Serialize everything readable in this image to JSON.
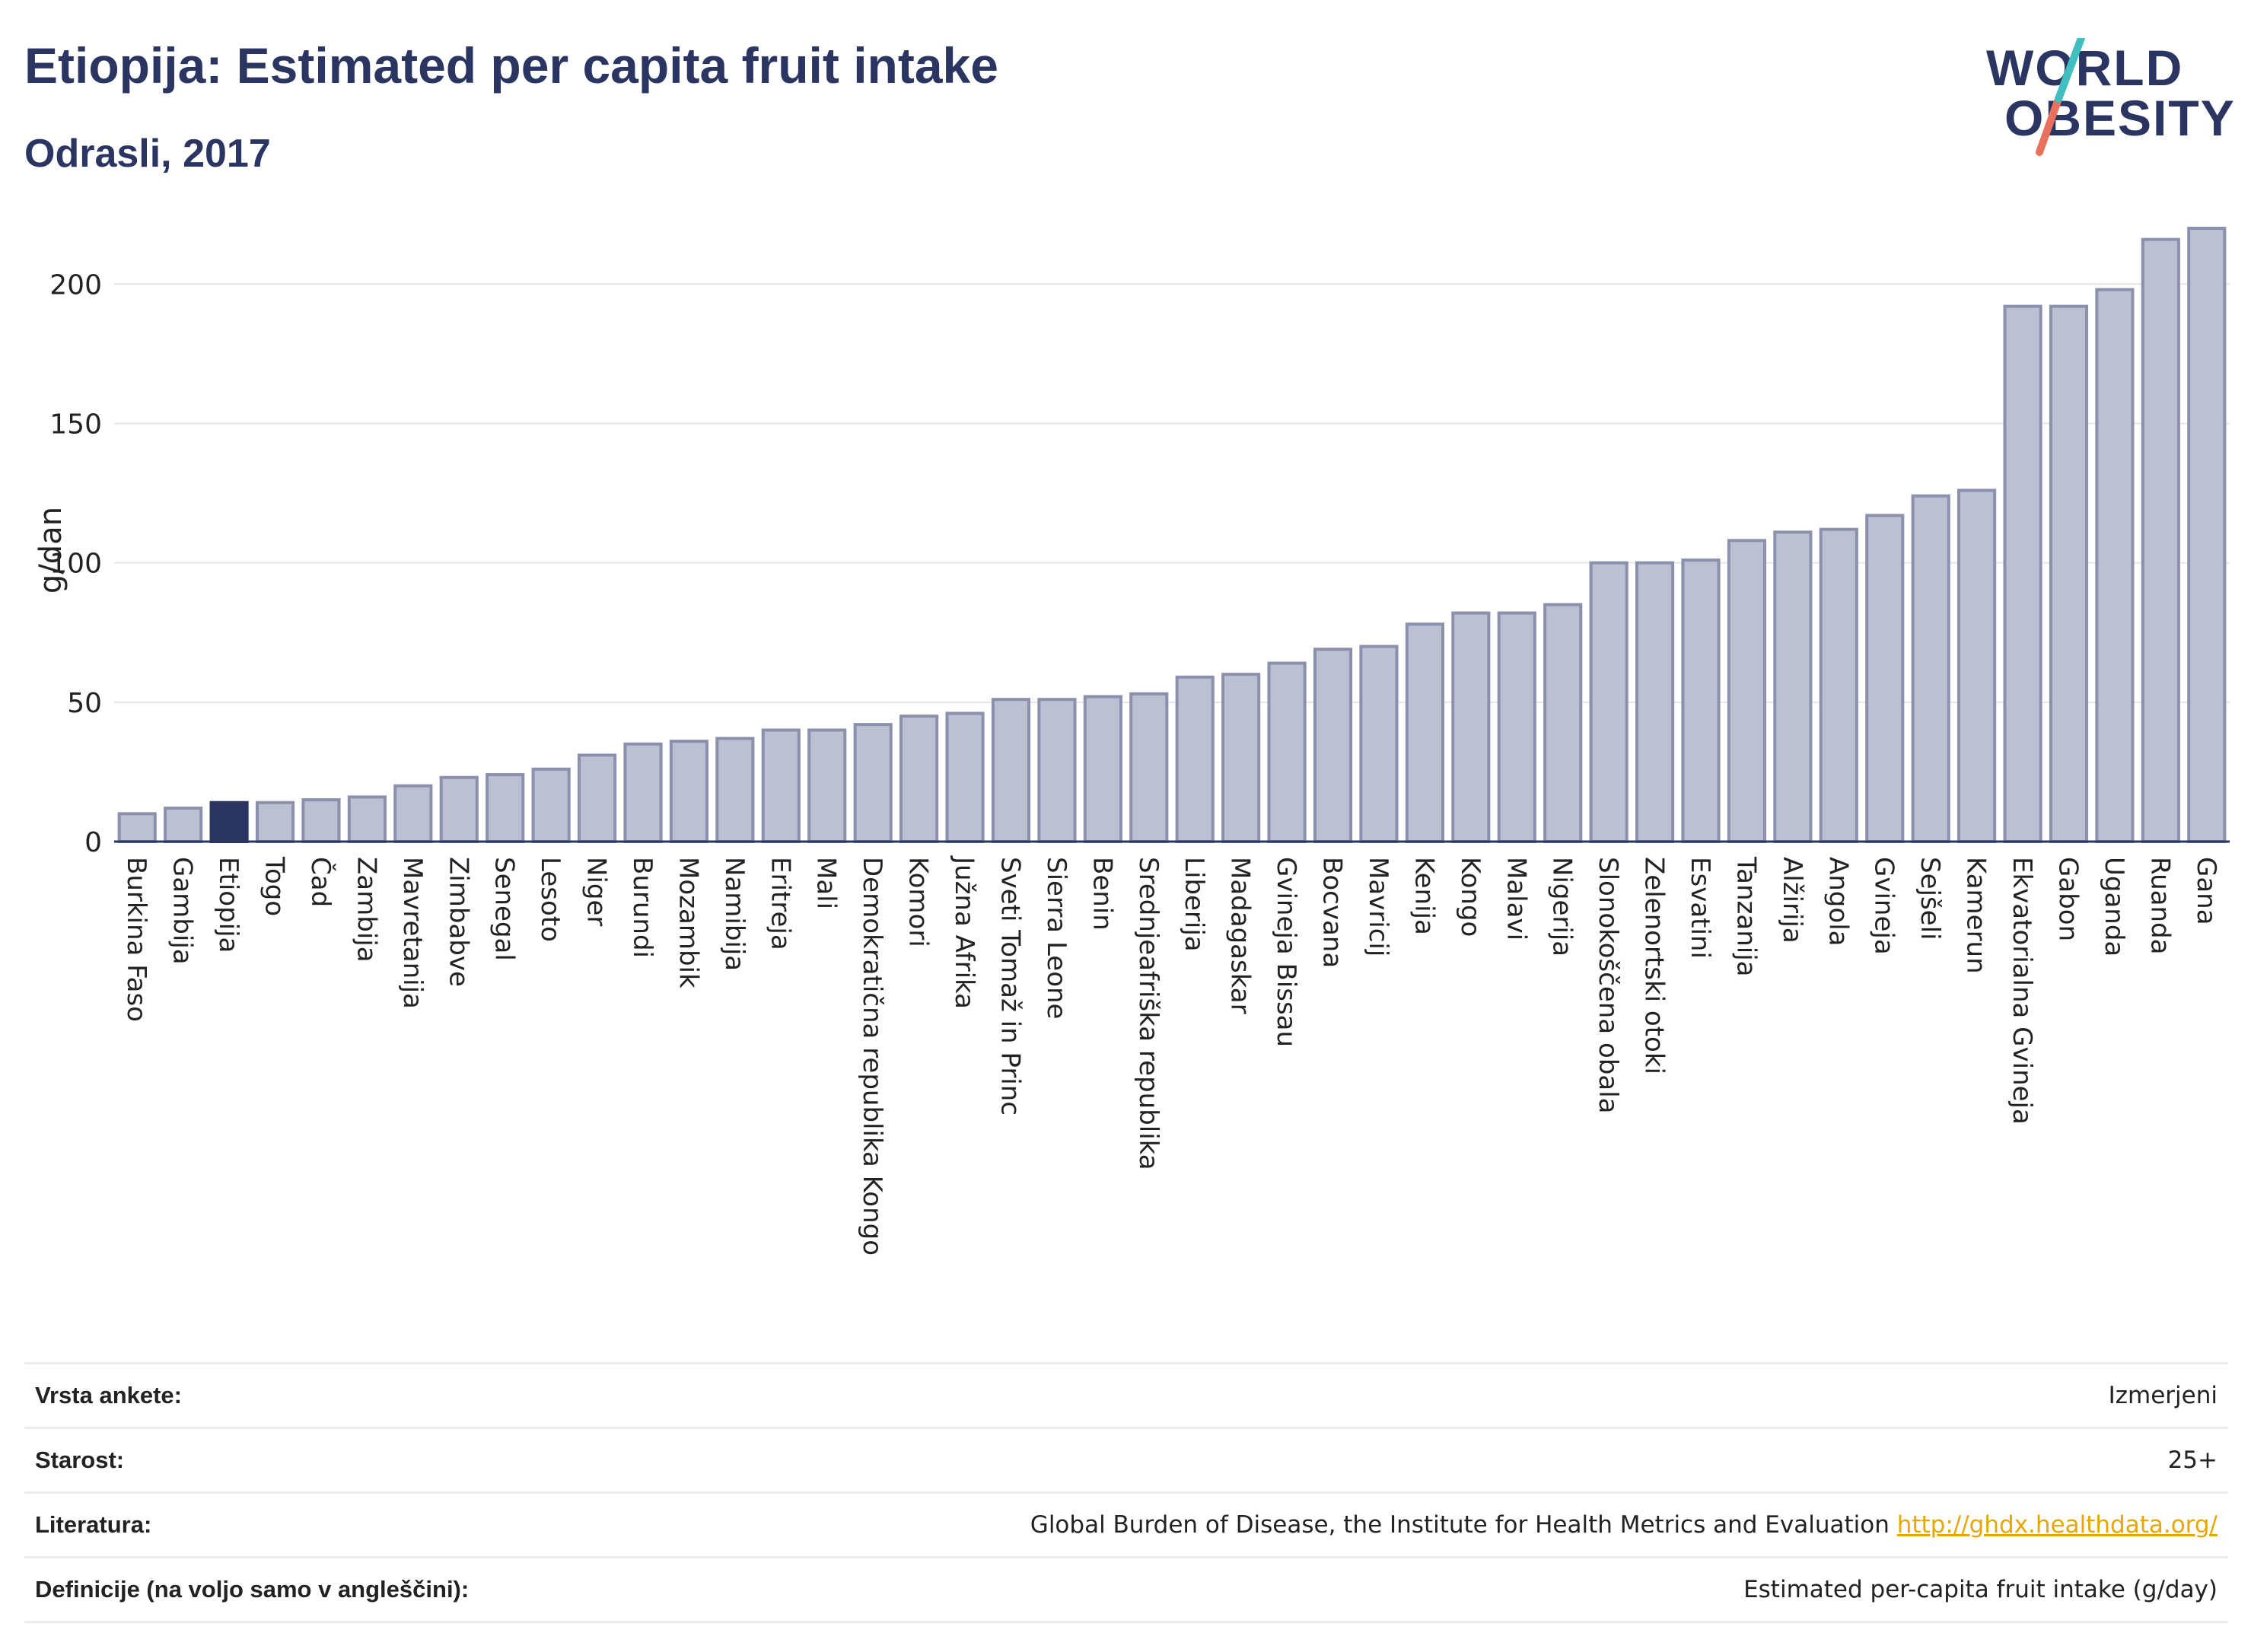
{
  "header": {
    "title": "Etiopija: Estimated per capita fruit intake",
    "subtitle": "Odrasli, 2017"
  },
  "logo": {
    "line1": "WORLD",
    "line2": "OBESITY",
    "slash_colors": [
      "#3fbfbf",
      "#e8705c"
    ]
  },
  "colors": {
    "bar": "#bcc0d0",
    "bar_stroke": "#8a90ad",
    "highlight": "#2b3561",
    "grid": "#e6e6e6",
    "link": "#e6a700"
  },
  "chart_data": {
    "type": "bar",
    "ylabel": "g/dan",
    "ylim": [
      0,
      220
    ],
    "yticks": [
      0,
      50,
      100,
      150,
      200
    ],
    "highlight": "Etiopija",
    "categories": [
      "Burkina Faso",
      "Gambija",
      "Etiopija",
      "Togo",
      "Čad",
      "Zambija",
      "Mavretanija",
      "Zimbabve",
      "Senegal",
      "Lesoto",
      "Niger",
      "Burundi",
      "Mozambik",
      "Namibija",
      "Eritreja",
      "Mali",
      "Demokratična republika Kongo",
      "Komori",
      "Južna Afrika",
      "Sveti Tomaž in Princ",
      "Sierra Leone",
      "Benin",
      "Srednjeafriška republika",
      "Liberija",
      "Madagaskar",
      "Gvineja Bissau",
      "Bocvana",
      "Mavricij",
      "Kenija",
      "Kongo",
      "Malavi",
      "Nigerija",
      "Slonokoščena obala",
      "Zelenortski otoki",
      "Esvatini",
      "Tanzanija",
      "Alžirija",
      "Angola",
      "Gvineja",
      "Sejšeli",
      "Kamerun",
      "Ekvatorialna Gvineja",
      "Gabon",
      "Uganda",
      "Ruanda",
      "Gana"
    ],
    "values": [
      10,
      12,
      14,
      14,
      15,
      16,
      20,
      23,
      24,
      26,
      31,
      35,
      36,
      37,
      40,
      40,
      42,
      45,
      46,
      51,
      51,
      52,
      53,
      59,
      60,
      64,
      69,
      70,
      78,
      82,
      82,
      85,
      100,
      100,
      101,
      108,
      111,
      112,
      117,
      124,
      126,
      192,
      192,
      198,
      216,
      220
    ]
  },
  "info": {
    "rows": [
      {
        "label": "Vrsta ankete:",
        "value": "Izmerjeni"
      },
      {
        "label": "Starost:",
        "value": "25+"
      },
      {
        "label": "Literatura:",
        "value": "Global Burden of Disease, the Institute for Health Metrics and Evaluation",
        "link": "http://ghdx.healthdata.org/"
      },
      {
        "label": "Definicije (na voljo samo v angleščini):",
        "value": "Estimated per-capita fruit intake (g/day)"
      }
    ]
  }
}
